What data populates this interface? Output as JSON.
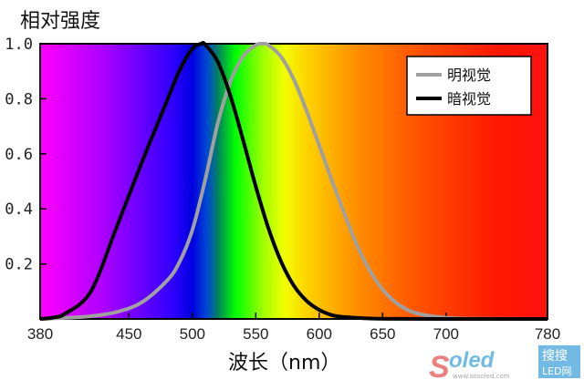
{
  "chart_data": {
    "type": "line",
    "title": "",
    "ylabel": "相对强度",
    "xlabel": "波长（nm）",
    "xlim": [
      380,
      780
    ],
    "ylim": [
      0,
      1.0
    ],
    "x_ticks": [
      380,
      450,
      500,
      550,
      600,
      650,
      700,
      780
    ],
    "x_tick_labels": [
      "380",
      "450",
      "500",
      "550",
      "600",
      "650",
      "700",
      "780"
    ],
    "y_ticks": [
      0.2,
      0.4,
      0.6,
      0.8,
      1.0
    ],
    "y_tick_labels": [
      "0.2",
      "0.4",
      "0.6",
      "0.8",
      "1.0"
    ],
    "grid": false,
    "background": "visible spectrum gradient (violet to red)",
    "legend_position": "top-right",
    "series": [
      {
        "name": "明视觉",
        "color": "#a0a0a0",
        "x": [
          380,
          400,
          420,
          440,
          460,
          480,
          490,
          500,
          510,
          520,
          530,
          540,
          550,
          555,
          560,
          570,
          580,
          590,
          600,
          610,
          620,
          630,
          640,
          650,
          660,
          670,
          680,
          700,
          720,
          780
        ],
        "y": [
          0.0,
          0.004,
          0.01,
          0.025,
          0.06,
          0.139,
          0.208,
          0.323,
          0.503,
          0.71,
          0.862,
          0.954,
          0.995,
          1.0,
          0.995,
          0.952,
          0.87,
          0.757,
          0.631,
          0.503,
          0.381,
          0.265,
          0.175,
          0.107,
          0.061,
          0.032,
          0.017,
          0.004,
          0.001,
          0.0
        ]
      },
      {
        "name": "暗视觉",
        "color": "#000000",
        "x": [
          380,
          390,
          400,
          420,
          440,
          460,
          480,
          490,
          500,
          507,
          510,
          520,
          530,
          540,
          550,
          560,
          570,
          580,
          590,
          600,
          610,
          620,
          640,
          660,
          700,
          780
        ],
        "y": [
          0.0,
          0.005,
          0.02,
          0.1,
          0.33,
          0.567,
          0.793,
          0.904,
          0.982,
          1.0,
          0.997,
          0.935,
          0.811,
          0.65,
          0.481,
          0.329,
          0.208,
          0.121,
          0.066,
          0.033,
          0.014,
          0.007,
          0.0015,
          0.0003,
          0.0,
          0.0
        ]
      }
    ]
  },
  "watermark": {
    "logo_text": "Soled",
    "badge_text": "搜搜LED网",
    "url_text": "www.sosoled.com"
  }
}
